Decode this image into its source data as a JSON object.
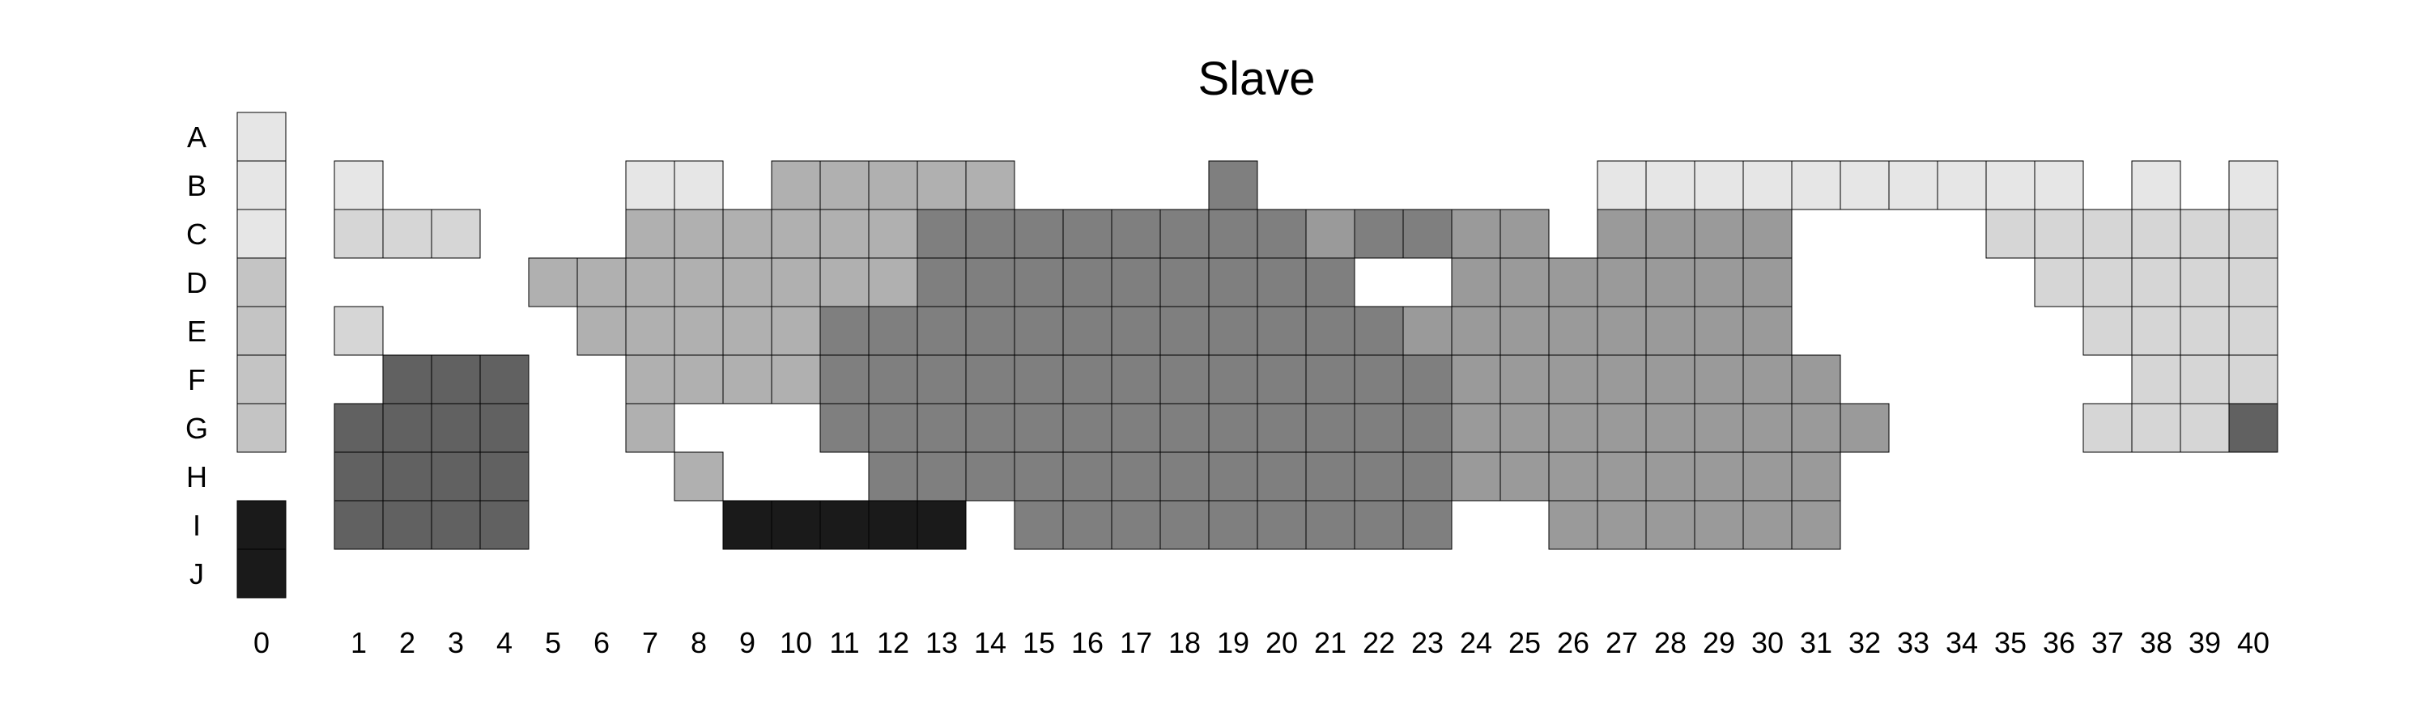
{
  "chart_data": {
    "type": "heatmap",
    "title": "Slave",
    "xlabel": "",
    "ylabel": "",
    "grid": false,
    "legend": "none",
    "rows": [
      "A",
      "B",
      "C",
      "D",
      "E",
      "F",
      "G",
      "H",
      "I",
      "J"
    ],
    "columns": [
      "0",
      "1",
      "2",
      "3",
      "4",
      "5",
      "6",
      "7",
      "8",
      "9",
      "10",
      "11",
      "12",
      "13",
      "14",
      "15",
      "16",
      "17",
      "18",
      "19",
      "20",
      "21",
      "22",
      "23",
      "24",
      "25",
      "26",
      "27",
      "28",
      "29",
      "30",
      "31",
      "32",
      "33",
      "34",
      "35",
      "36",
      "37",
      "38",
      "39",
      "40"
    ],
    "shades": {
      "1": "#e6e6e6",
      "2": "#d6d6d6",
      "3": "#c4c4c4",
      "4": "#b0b0b0",
      "5": "#9a9a9a",
      "6": "#7f7f7f",
      "7": "#616161",
      "8": "#1a1a1a"
    },
    "values": [
      [
        1,
        0,
        0,
        0,
        0,
        0,
        0,
        0,
        0,
        0,
        0,
        0,
        0,
        0,
        0,
        0,
        0,
        0,
        0,
        0,
        0,
        0,
        0,
        0,
        0,
        0,
        0,
        0,
        0,
        0,
        0,
        0,
        0,
        0,
        0,
        0,
        0,
        0,
        0,
        0,
        0
      ],
      [
        1,
        1,
        0,
        0,
        0,
        0,
        0,
        1,
        1,
        0,
        4,
        4,
        4,
        4,
        4,
        0,
        0,
        0,
        0,
        6,
        0,
        0,
        0,
        0,
        0,
        0,
        0,
        1,
        1,
        1,
        1,
        1,
        1,
        1,
        1,
        1,
        1,
        0,
        1,
        0,
        1
      ],
      [
        1,
        2,
        2,
        2,
        0,
        0,
        0,
        4,
        4,
        4,
        4,
        4,
        4,
        6,
        6,
        6,
        6,
        6,
        6,
        6,
        6,
        5,
        6,
        6,
        5,
        5,
        0,
        5,
        5,
        5,
        5,
        0,
        0,
        0,
        0,
        2,
        2,
        2,
        2,
        2,
        2
      ],
      [
        3,
        0,
        0,
        0,
        0,
        4,
        4,
        4,
        4,
        4,
        4,
        4,
        4,
        6,
        6,
        6,
        6,
        6,
        6,
        6,
        6,
        6,
        0,
        0,
        5,
        5,
        5,
        5,
        5,
        5,
        5,
        0,
        0,
        0,
        0,
        0,
        2,
        2,
        2,
        2,
        2
      ],
      [
        3,
        2,
        0,
        0,
        0,
        0,
        4,
        4,
        4,
        4,
        4,
        6,
        6,
        6,
        6,
        6,
        6,
        6,
        6,
        6,
        6,
        6,
        6,
        5,
        5,
        5,
        5,
        5,
        5,
        5,
        5,
        0,
        0,
        0,
        0,
        0,
        0,
        2,
        2,
        2,
        2
      ],
      [
        3,
        0,
        7,
        7,
        7,
        0,
        0,
        4,
        4,
        4,
        4,
        6,
        6,
        6,
        6,
        6,
        6,
        6,
        6,
        6,
        6,
        6,
        6,
        6,
        5,
        5,
        5,
        5,
        5,
        5,
        5,
        5,
        0,
        0,
        0,
        0,
        0,
        0,
        2,
        2,
        2
      ],
      [
        3,
        7,
        7,
        7,
        7,
        0,
        0,
        4,
        0,
        0,
        0,
        6,
        6,
        6,
        6,
        6,
        6,
        6,
        6,
        6,
        6,
        6,
        6,
        6,
        5,
        5,
        5,
        5,
        5,
        5,
        5,
        5,
        5,
        0,
        0,
        0,
        0,
        2,
        2,
        2,
        7
      ],
      [
        0,
        7,
        7,
        7,
        7,
        0,
        0,
        0,
        4,
        0,
        0,
        0,
        6,
        6,
        6,
        6,
        6,
        6,
        6,
        6,
        6,
        6,
        6,
        6,
        5,
        5,
        5,
        5,
        5,
        5,
        5,
        5,
        0,
        0,
        0,
        0,
        0,
        0,
        0,
        0,
        0
      ],
      [
        8,
        7,
        7,
        7,
        7,
        0,
        0,
        0,
        0,
        8,
        8,
        8,
        8,
        8,
        0,
        6,
        6,
        6,
        6,
        6,
        6,
        6,
        6,
        6,
        0,
        0,
        5,
        5,
        5,
        5,
        5,
        5,
        0,
        0,
        0,
        0,
        0,
        0,
        0,
        0,
        0
      ],
      [
        8,
        0,
        0,
        0,
        0,
        0,
        0,
        0,
        0,
        0,
        0,
        0,
        0,
        0,
        0,
        0,
        0,
        0,
        0,
        0,
        0,
        0,
        0,
        0,
        0,
        0,
        0,
        0,
        0,
        0,
        0,
        0,
        0,
        0,
        0,
        0,
        0,
        0,
        0,
        0,
        0
      ]
    ]
  }
}
